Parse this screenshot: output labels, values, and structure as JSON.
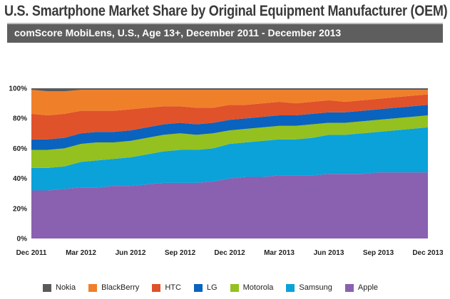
{
  "title": "U.S. Smartphone Market Share by Original Equipment Manufacturer (OEM)",
  "subtitle": "comScore MobiLens, U.S., Age 13+, December 2011 - December 2013",
  "chart_data": {
    "type": "area",
    "stacked": true,
    "title": "U.S. Smartphone Market Share by Original Equipment Manufacturer (OEM)",
    "subtitle": "comScore MobiLens, U.S., Age 13+, December 2011 - December 2013",
    "x": [
      "Dec 2011",
      "Jan 2012",
      "Feb 2012",
      "Mar 2012",
      "Apr 2012",
      "May 2012",
      "Jun 2012",
      "Jul 2012",
      "Aug 2012",
      "Sep 2012",
      "Oct 2012",
      "Nov 2012",
      "Dec 2012",
      "Jan 2013",
      "Feb 2013",
      "Mar 2013",
      "Apr 2013",
      "May 2013",
      "Jun 2013",
      "Jul 2013",
      "Aug 2013",
      "Sep 2013",
      "Oct 2013",
      "Nov 2013",
      "Dec 2013"
    ],
    "x_tick_labels": [
      "Dec 2011",
      "Mar 2012",
      "Jun 2012",
      "Sep 2012",
      "Dec 2012",
      "Mar 2013",
      "Jun 2013",
      "Sep 2013",
      "Dec 2013"
    ],
    "y_tick_labels": [
      "0%",
      "20%",
      "40%",
      "60%",
      "80%",
      "100%"
    ],
    "ylim": [
      0,
      100
    ],
    "legend_position": "bottom",
    "series": [
      {
        "name": "Apple",
        "color": "#8a60b0",
        "values": [
          32,
          32,
          33,
          34,
          34,
          35,
          35,
          36,
          37,
          37,
          37,
          38,
          40,
          41,
          41,
          42,
          42,
          42,
          43,
          43,
          43,
          44,
          44,
          44,
          44
        ]
      },
      {
        "name": "Samsung",
        "color": "#0aa2d9",
        "values": [
          15,
          15,
          15,
          17,
          18,
          18,
          19,
          20,
          21,
          22,
          22,
          22,
          23,
          23,
          24,
          24,
          24,
          25,
          26,
          26,
          27,
          27,
          28,
          29,
          30
        ]
      },
      {
        "name": "Motorola",
        "color": "#94c11f",
        "values": [
          12,
          12,
          12,
          12,
          12,
          11,
          11,
          11,
          11,
          11,
          10,
          10,
          9,
          9,
          9,
          9,
          9,
          9,
          8,
          8,
          8,
          8,
          8,
          8,
          8
        ]
      },
      {
        "name": "LG",
        "color": "#0a63bf",
        "values": [
          7,
          7,
          7,
          7,
          7,
          7,
          7,
          7,
          7,
          7,
          7,
          7,
          7,
          7,
          7,
          7,
          7,
          7,
          7,
          7,
          7,
          7,
          7,
          7,
          7
        ]
      },
      {
        "name": "HTC",
        "color": "#e0522a",
        "values": [
          17,
          16,
          16,
          15,
          14,
          14,
          14,
          13,
          12,
          11,
          11,
          10,
          10,
          9,
          9,
          9,
          8,
          8,
          8,
          7,
          7,
          7,
          7,
          7,
          7
        ]
      },
      {
        "name": "BlackBerry",
        "color": "#f07f2a",
        "values": [
          16,
          16,
          15,
          14,
          14,
          14,
          13,
          12,
          11,
          11,
          12,
          12,
          10,
          10,
          9,
          8,
          9,
          8,
          7,
          8,
          7,
          6,
          5,
          4,
          3
        ]
      },
      {
        "name": "Nokia",
        "color": "#5a5a5a",
        "values": [
          1,
          2,
          2,
          1,
          1,
          1,
          1,
          1,
          1,
          1,
          1,
          1,
          1,
          1,
          1,
          1,
          1,
          1,
          1,
          1,
          1,
          1,
          1,
          1,
          1
        ]
      }
    ],
    "legend": [
      "Nokia",
      "BlackBerry",
      "HTC",
      "LG",
      "Motorola",
      "Samsung",
      "Apple"
    ]
  }
}
